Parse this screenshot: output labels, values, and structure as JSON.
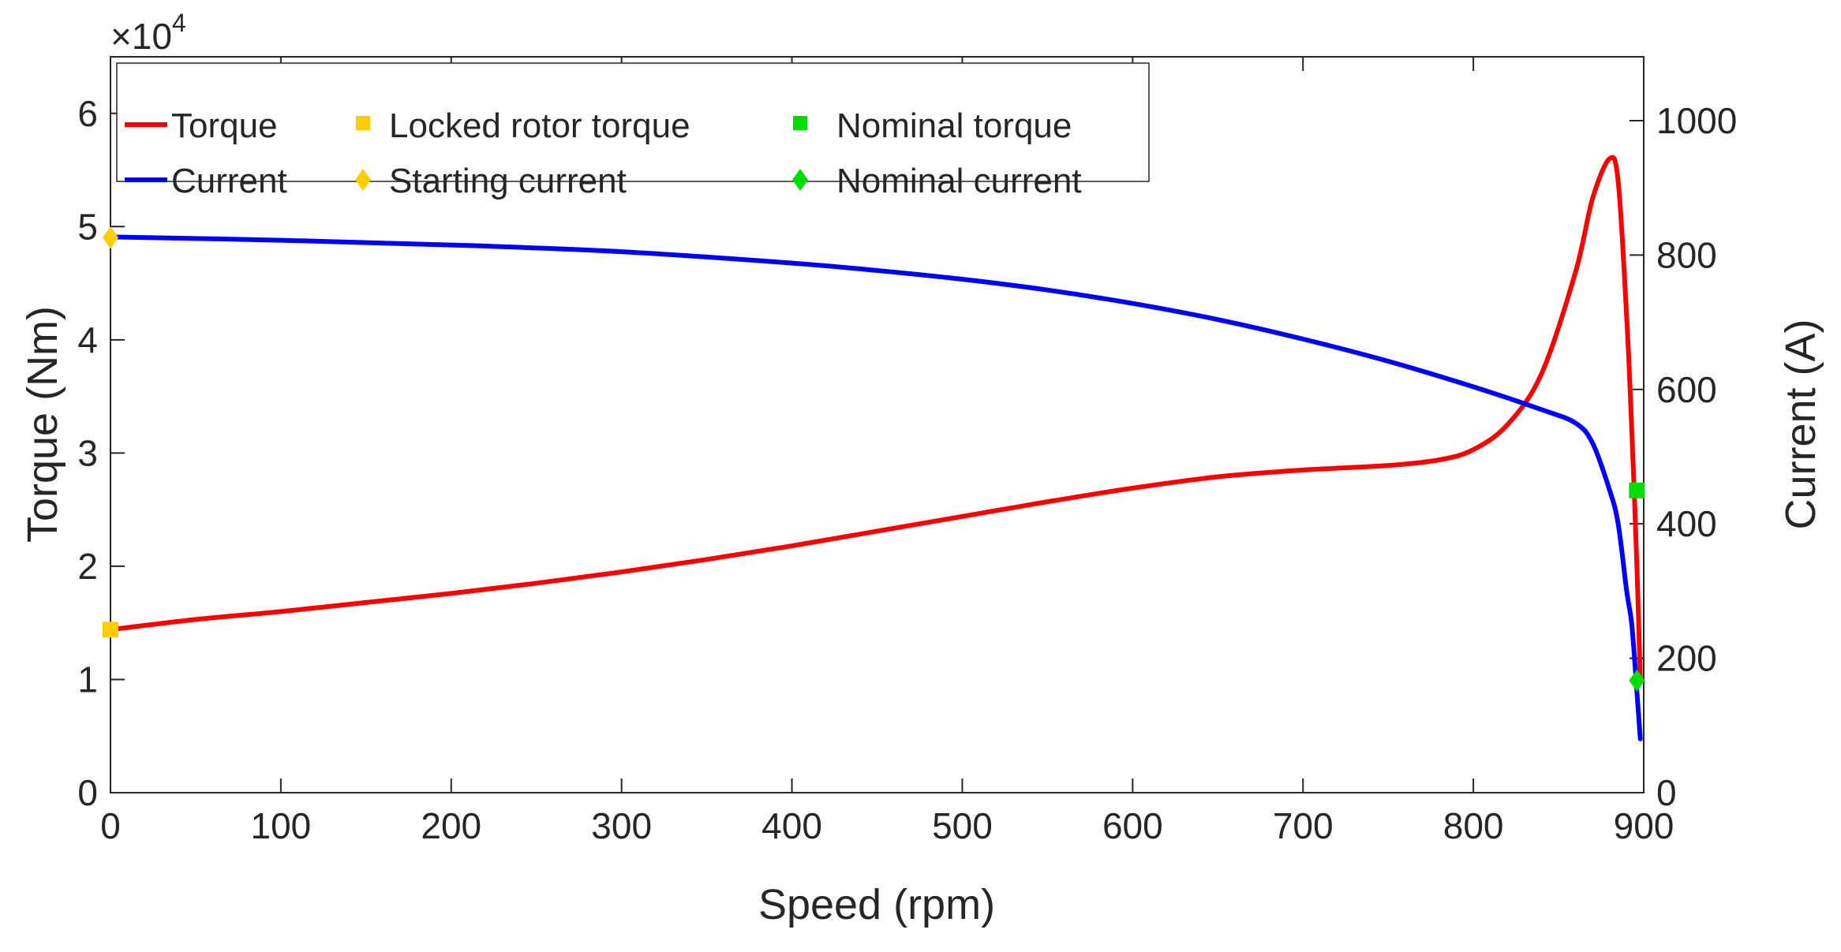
{
  "chart_data": {
    "type": "line",
    "xlabel": "Speed (rpm)",
    "ylabel_left": "Torque (Nm)",
    "ylabel_right": "Current (A)",
    "xlim": [
      0,
      900
    ],
    "ylim_left": [
      0,
      65000
    ],
    "ylim_right": [
      0,
      1095
    ],
    "x_ticks": [
      0,
      100,
      200,
      300,
      400,
      500,
      600,
      700,
      800,
      900
    ],
    "x_tick_labels": [
      "0",
      "100",
      "200",
      "300",
      "400",
      "500",
      "600",
      "700",
      "800",
      "900"
    ],
    "y_left_ticks": [
      0,
      10000,
      20000,
      30000,
      40000,
      50000,
      60000
    ],
    "y_left_tick_labels": [
      "0",
      "1",
      "2",
      "3",
      "4",
      "5",
      "6"
    ],
    "y_left_exponent_base": "×10",
    "y_left_exponent_power": "4",
    "y_right_ticks": [
      0,
      200,
      400,
      600,
      800,
      1000
    ],
    "y_right_tick_labels": [
      "0",
      "200",
      "400",
      "600",
      "800",
      "1000"
    ],
    "grid": false,
    "legend_position": "top-left",
    "series": [
      {
        "name": "Torque",
        "axis": "left",
        "color": "#ff0000",
        "style": "line",
        "x": [
          0,
          50,
          100,
          150,
          200,
          250,
          300,
          350,
          400,
          450,
          500,
          550,
          600,
          650,
          700,
          750,
          780,
          800,
          820,
          840,
          860,
          870,
          880,
          885,
          890,
          893,
          896,
          898
        ],
        "y": [
          14400,
          15300,
          16000,
          16800,
          17600,
          18500,
          19500,
          20600,
          21800,
          23100,
          24400,
          25700,
          26900,
          27900,
          28500,
          28900,
          29400,
          30300,
          32500,
          37000,
          46000,
          52500,
          56000,
          54000,
          42000,
          32000,
          20000,
          10000
        ]
      },
      {
        "name": "Current",
        "axis": "right",
        "color": "#0000ff",
        "style": "line",
        "x": [
          0,
          100,
          200,
          300,
          400,
          450,
          500,
          550,
          600,
          650,
          700,
          750,
          800,
          840,
          860,
          870,
          880,
          885,
          890,
          893,
          896,
          898
        ],
        "y": [
          827,
          822,
          815,
          805,
          788,
          777,
          764,
          748,
          728,
          704,
          675,
          642,
          604,
          570,
          550,
          520,
          450,
          400,
          300,
          250,
          150,
          80
        ]
      },
      {
        "name": "Locked rotor torque",
        "axis": "left",
        "color": "#ffcc00",
        "style": "square",
        "x": [
          0
        ],
        "y": [
          14400
        ]
      },
      {
        "name": "Starting current",
        "axis": "right",
        "color": "#ffcc00",
        "style": "diamond",
        "x": [
          0
        ],
        "y": [
          826
        ]
      },
      {
        "name": "Nominal torque",
        "axis": "left",
        "color": "#00dd00",
        "style": "square",
        "x": [
          896
        ],
        "y": [
          26700
        ]
      },
      {
        "name": "Nominal current",
        "axis": "right",
        "color": "#00dd00",
        "style": "diamond",
        "x": [
          896
        ],
        "y": [
          167
        ]
      }
    ]
  }
}
